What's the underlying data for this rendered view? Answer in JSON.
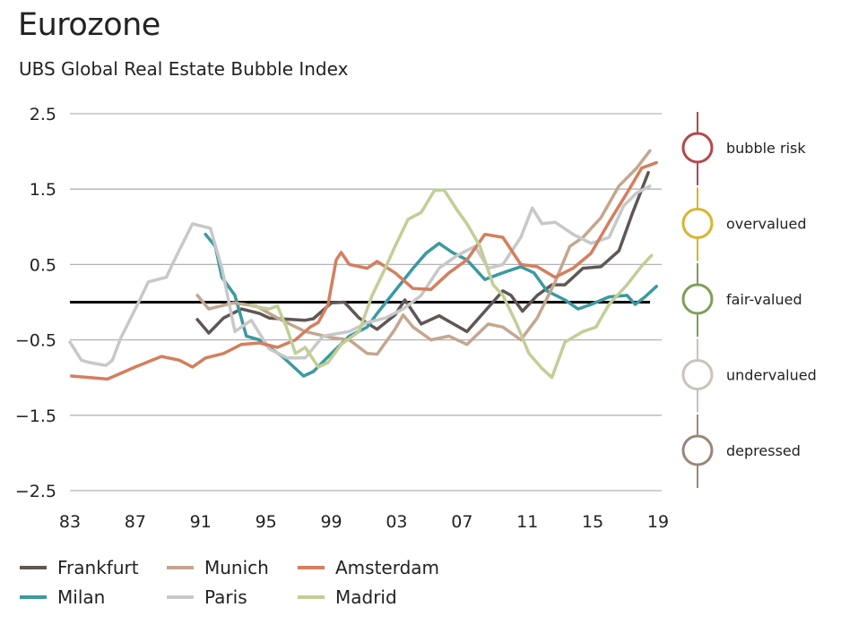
{
  "chart_data": {
    "type": "line",
    "title": "Eurozone",
    "subtitle": "UBS Global Real Estate Bubble Index",
    "xlabel": "",
    "ylabel": "",
    "xlim": [
      1983,
      2019
    ],
    "ylim": [
      -2.5,
      2.5
    ],
    "x_ticks": [
      1983,
      1987,
      1991,
      1995,
      1999,
      2003,
      2007,
      2011,
      2015,
      2019
    ],
    "x_tick_labels": [
      "83",
      "87",
      "91",
      "95",
      "99",
      "03",
      "07",
      "11",
      "15",
      "19"
    ],
    "y_ticks": [
      2.5,
      1.5,
      0.5,
      -0.5,
      -1.5,
      -2.5
    ],
    "y_tick_labels": [
      "2.5",
      "1.5",
      "0.5",
      "−0.5",
      "−1.5",
      "−2.5"
    ],
    "grid": "horizontal",
    "reference_line": 0,
    "legend_position": "bottom",
    "series": [
      {
        "name": "Frankfurt",
        "color": "#5f5754",
        "points": [
          [
            1990.8,
            -0.23
          ],
          [
            1991.5,
            -0.41
          ],
          [
            1992.4,
            -0.21
          ],
          [
            1993.5,
            -0.09
          ],
          [
            1994.6,
            -0.15
          ],
          [
            1995.2,
            -0.21
          ],
          [
            1997.4,
            -0.24
          ],
          [
            1997.9,
            -0.22
          ],
          [
            1999.0,
            -0.01
          ],
          [
            1999.8,
            0.0
          ],
          [
            2000.7,
            -0.21
          ],
          [
            2001.8,
            -0.36
          ],
          [
            2002.9,
            -0.17
          ],
          [
            2003.5,
            0.03
          ],
          [
            2004.5,
            -0.29
          ],
          [
            2005.6,
            -0.18
          ],
          [
            2007.3,
            -0.39
          ],
          [
            2008.4,
            -0.12
          ],
          [
            2009.5,
            0.15
          ],
          [
            2010.0,
            0.09
          ],
          [
            2010.7,
            -0.12
          ],
          [
            2011.6,
            0.09
          ],
          [
            2012.5,
            0.23
          ],
          [
            2013.3,
            0.23
          ],
          [
            2014.4,
            0.45
          ],
          [
            2015.5,
            0.47
          ],
          [
            2016.6,
            0.68
          ],
          [
            2017.4,
            1.16
          ],
          [
            2018.4,
            1.72
          ]
        ]
      },
      {
        "name": "Milan",
        "color": "#3a9aa0",
        "points": [
          [
            1991.3,
            0.9
          ],
          [
            1991.9,
            0.74
          ],
          [
            1992.3,
            0.33
          ],
          [
            1993.1,
            0.09
          ],
          [
            1993.8,
            -0.45
          ],
          [
            1994.6,
            -0.5
          ],
          [
            1995.2,
            -0.6
          ],
          [
            1996.0,
            -0.72
          ],
          [
            1997.3,
            -0.98
          ],
          [
            1997.9,
            -0.92
          ],
          [
            1999.0,
            -0.68
          ],
          [
            2000.1,
            -0.45
          ],
          [
            2001.2,
            -0.33
          ],
          [
            2001.8,
            -0.15
          ],
          [
            2002.9,
            0.15
          ],
          [
            2004.0,
            0.45
          ],
          [
            2004.8,
            0.65
          ],
          [
            2005.6,
            0.78
          ],
          [
            2006.4,
            0.66
          ],
          [
            2007.3,
            0.56
          ],
          [
            2008.4,
            0.3
          ],
          [
            2009.5,
            0.39
          ],
          [
            2010.6,
            0.47
          ],
          [
            2011.4,
            0.39
          ],
          [
            2012.2,
            0.15
          ],
          [
            2013.3,
            0.03
          ],
          [
            2014.1,
            -0.09
          ],
          [
            2014.9,
            -0.03
          ],
          [
            2016.0,
            0.07
          ],
          [
            2017.1,
            0.09
          ],
          [
            2017.6,
            -0.03
          ],
          [
            2018.2,
            0.07
          ],
          [
            2018.9,
            0.21
          ]
        ]
      },
      {
        "name": "Munich",
        "color": "#c4a68f",
        "points": [
          [
            1990.8,
            0.09
          ],
          [
            1991.5,
            -0.09
          ],
          [
            1993.0,
            -0.01
          ],
          [
            1994.4,
            -0.05
          ],
          [
            1995.7,
            -0.21
          ],
          [
            1997.4,
            -0.39
          ],
          [
            1999.0,
            -0.47
          ],
          [
            2000.1,
            -0.5
          ],
          [
            2001.2,
            -0.68
          ],
          [
            2001.8,
            -0.69
          ],
          [
            2002.9,
            -0.36
          ],
          [
            2003.4,
            -0.17
          ],
          [
            2004.0,
            -0.33
          ],
          [
            2005.1,
            -0.5
          ],
          [
            2006.2,
            -0.45
          ],
          [
            2007.3,
            -0.56
          ],
          [
            2008.6,
            -0.29
          ],
          [
            2009.5,
            -0.33
          ],
          [
            2010.6,
            -0.5
          ],
          [
            2011.6,
            -0.21
          ],
          [
            2012.7,
            0.27
          ],
          [
            2013.6,
            0.74
          ],
          [
            2014.4,
            0.86
          ],
          [
            2015.5,
            1.12
          ],
          [
            2016.6,
            1.54
          ],
          [
            2017.7,
            1.78
          ],
          [
            2018.5,
            2.01
          ]
        ]
      },
      {
        "name": "Paris",
        "color": "#c8c8c8",
        "points": [
          [
            1983.0,
            -0.53
          ],
          [
            1983.7,
            -0.77
          ],
          [
            1984.2,
            -0.8
          ],
          [
            1985.2,
            -0.84
          ],
          [
            1985.6,
            -0.77
          ],
          [
            1986.1,
            -0.48
          ],
          [
            1987.0,
            -0.09
          ],
          [
            1987.8,
            0.27
          ],
          [
            1988.9,
            0.33
          ],
          [
            1989.4,
            0.56
          ],
          [
            1990.5,
            1.04
          ],
          [
            1991.6,
            0.98
          ],
          [
            1992.3,
            0.45
          ],
          [
            1993.1,
            -0.39
          ],
          [
            1994.1,
            -0.24
          ],
          [
            1995.2,
            -0.62
          ],
          [
            1996.3,
            -0.74
          ],
          [
            1997.4,
            -0.74
          ],
          [
            1998.5,
            -0.45
          ],
          [
            2000.1,
            -0.39
          ],
          [
            2001.2,
            -0.27
          ],
          [
            2002.3,
            -0.21
          ],
          [
            2003.4,
            -0.09
          ],
          [
            2004.5,
            0.09
          ],
          [
            2005.6,
            0.45
          ],
          [
            2006.7,
            0.62
          ],
          [
            2007.8,
            0.74
          ],
          [
            2008.6,
            0.45
          ],
          [
            2009.5,
            0.5
          ],
          [
            2010.6,
            0.86
          ],
          [
            2011.3,
            1.25
          ],
          [
            2011.9,
            1.04
          ],
          [
            2012.7,
            1.06
          ],
          [
            2013.8,
            0.9
          ],
          [
            2014.9,
            0.78
          ],
          [
            2016.0,
            0.86
          ],
          [
            2016.9,
            1.28
          ],
          [
            2017.7,
            1.45
          ],
          [
            2018.5,
            1.54
          ]
        ]
      },
      {
        "name": "Amsterdam",
        "color": "#d47e5e",
        "points": [
          [
            1983.1,
            -0.98
          ],
          [
            1985.3,
            -1.02
          ],
          [
            1987.0,
            -0.86
          ],
          [
            1988.6,
            -0.72
          ],
          [
            1989.7,
            -0.77
          ],
          [
            1990.5,
            -0.86
          ],
          [
            1991.3,
            -0.74
          ],
          [
            1992.4,
            -0.68
          ],
          [
            1993.5,
            -0.56
          ],
          [
            1994.6,
            -0.54
          ],
          [
            1995.7,
            -0.6
          ],
          [
            1996.8,
            -0.5
          ],
          [
            1997.7,
            -0.33
          ],
          [
            1998.2,
            -0.27
          ],
          [
            1998.8,
            -0.03
          ],
          [
            1999.3,
            0.56
          ],
          [
            1999.6,
            0.66
          ],
          [
            2000.1,
            0.5
          ],
          [
            2001.2,
            0.45
          ],
          [
            2001.8,
            0.54
          ],
          [
            2002.9,
            0.39
          ],
          [
            2004.0,
            0.18
          ],
          [
            2005.1,
            0.17
          ],
          [
            2006.2,
            0.39
          ],
          [
            2007.3,
            0.56
          ],
          [
            2008.4,
            0.9
          ],
          [
            2009.5,
            0.86
          ],
          [
            2010.6,
            0.5
          ],
          [
            2011.6,
            0.47
          ],
          [
            2012.7,
            0.33
          ],
          [
            2013.8,
            0.45
          ],
          [
            2014.9,
            0.65
          ],
          [
            2016.0,
            1.06
          ],
          [
            2017.1,
            1.45
          ],
          [
            2018.0,
            1.78
          ],
          [
            2018.9,
            1.85
          ]
        ]
      },
      {
        "name": "Madrid",
        "color": "#c0cf95",
        "points": [
          [
            1994.1,
            -0.05
          ],
          [
            1995.2,
            -0.09
          ],
          [
            1995.7,
            -0.05
          ],
          [
            1996.3,
            -0.36
          ],
          [
            1996.8,
            -0.68
          ],
          [
            1997.4,
            -0.6
          ],
          [
            1998.2,
            -0.86
          ],
          [
            1998.8,
            -0.8
          ],
          [
            1999.6,
            -0.56
          ],
          [
            2000.7,
            -0.39
          ],
          [
            2001.5,
            0.09
          ],
          [
            2002.3,
            0.45
          ],
          [
            2002.9,
            0.74
          ],
          [
            2003.7,
            1.1
          ],
          [
            2004.5,
            1.19
          ],
          [
            2005.3,
            1.48
          ],
          [
            2005.9,
            1.49
          ],
          [
            2006.7,
            1.22
          ],
          [
            2007.3,
            1.04
          ],
          [
            2008.1,
            0.74
          ],
          [
            2008.9,
            0.23
          ],
          [
            2009.5,
            0.09
          ],
          [
            2010.3,
            -0.27
          ],
          [
            2011.1,
            -0.68
          ],
          [
            2011.9,
            -0.88
          ],
          [
            2012.5,
            -1.0
          ],
          [
            2013.3,
            -0.53
          ],
          [
            2014.4,
            -0.39
          ],
          [
            2015.2,
            -0.33
          ],
          [
            2016.0,
            -0.03
          ],
          [
            2017.1,
            0.23
          ],
          [
            2018.0,
            0.48
          ],
          [
            2018.6,
            0.62
          ]
        ]
      }
    ],
    "zones": [
      {
        "label": "bubble risk",
        "color": "#b5474b"
      },
      {
        "label": "overvalued",
        "color": "#d9b52e"
      },
      {
        "label": "fair-valued",
        "color": "#7f9e5a"
      },
      {
        "label": "undervalued",
        "color": "#c9c3bc"
      },
      {
        "label": "depressed",
        "color": "#9a877a"
      }
    ]
  }
}
